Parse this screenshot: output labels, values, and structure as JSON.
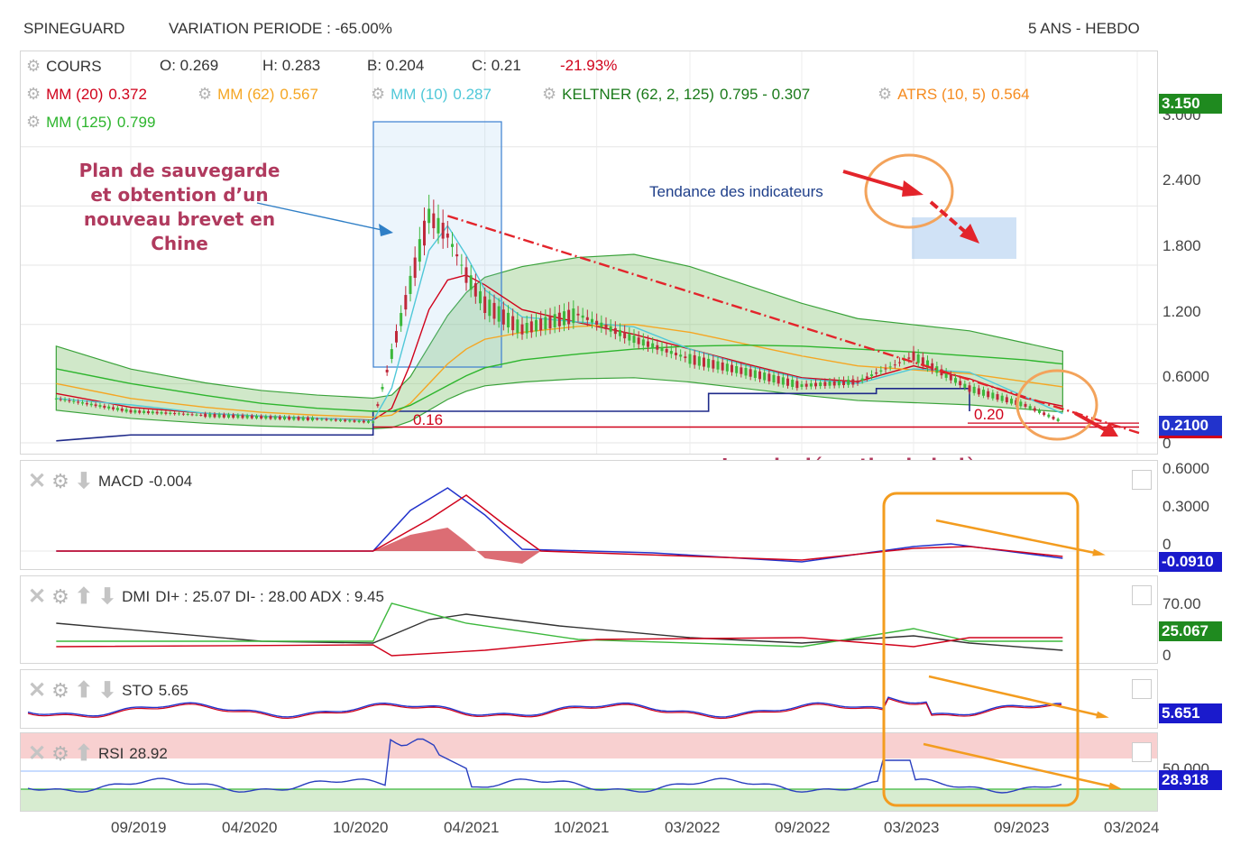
{
  "header": {
    "ticker": "SPINEGUARD",
    "variation": "VARIATION PERIODE : -65.00%",
    "period": "5 ANS - HEBDO"
  },
  "main_panel": {
    "legend_row1": {
      "name": "COURS",
      "open": "O: 0.269",
      "high": "H: 0.283",
      "low": "B: 0.204",
      "close": "C: 0.21",
      "change": "-21.93%"
    },
    "legend_indicators": [
      {
        "label": "MM (20)",
        "value": "0.372",
        "color": "#d0021b"
      },
      {
        "label": "MM (62)",
        "value": "0.567",
        "color": "#f5a623"
      },
      {
        "label": "MM (10)",
        "value": "0.287",
        "color": "#50c8d8"
      },
      {
        "label": "KELTNER (62, 2, 125)",
        "value": "0.795 - 0.307",
        "color": "#1a7a1a"
      },
      {
        "label": "ATRS (10, 5)",
        "value": "0.564",
        "color": "#f58b1f"
      },
      {
        "label": "MM (125)",
        "value": "0.799",
        "color": "#2db52d"
      }
    ],
    "y_axis_ticks": [
      "3.000",
      "2.400",
      "1.800",
      "1.200",
      "0.6000",
      "0"
    ],
    "price_tags": {
      "top": "3.150",
      "last": "0.2100"
    },
    "level_labels": {
      "low_2020": "0.16",
      "low_2023": "0.20"
    }
  },
  "annotations": {
    "brevet_lines": [
      "Plan de sauvegarde",
      "et obtention d’un",
      "nouveau brevet en",
      "Chine"
    ],
    "tendance": "Tendance des indicateurs",
    "deception": "Lourde déception baissière en cours"
  },
  "macd_panel": {
    "label": "MACD",
    "value": "-0.004",
    "y_ticks": [
      "0.6000",
      "0.3000",
      "0"
    ],
    "tag": "-0.0910"
  },
  "dmi_panel": {
    "label": "DMI",
    "values": "DI+ : 25.07 DI- : 28.00 ADX : 9.45",
    "y_ticks": [
      "70.00",
      "0"
    ],
    "tag": "25.067"
  },
  "sto_panel": {
    "label": "STO",
    "value": "5.65",
    "tag": "5.651"
  },
  "rsi_panel": {
    "label": "RSI",
    "value": "28.92",
    "y_ticks": [
      "50.000"
    ],
    "tag": "28.918"
  },
  "x_axis": [
    "09/2019",
    "04/2020",
    "10/2020",
    "04/2021",
    "10/2021",
    "03/2022",
    "09/2022",
    "03/2023",
    "09/2023",
    "03/2024"
  ],
  "chart_data": {
    "type": "line",
    "title": "SPINEGUARD",
    "subtitle": "5 ANS - HEBDO",
    "x": [
      "2019-05",
      "2019-09",
      "2020-01",
      "2020-04",
      "2020-07",
      "2020-10",
      "2020-11",
      "2020-12",
      "2021-01",
      "2021-02",
      "2021-03",
      "2021-04",
      "2021-06",
      "2021-09",
      "2021-12",
      "2022-03",
      "2022-06",
      "2022-09",
      "2022-12",
      "2023-03",
      "2023-06",
      "2023-09",
      "2023-11"
    ],
    "series": [
      {
        "name": "COURS",
        "values": [
          0.45,
          0.32,
          0.28,
          0.26,
          0.24,
          0.21,
          0.9,
          1.6,
          2.3,
          2.1,
          1.7,
          1.4,
          1.15,
          1.3,
          1.05,
          0.85,
          0.72,
          0.58,
          0.62,
          0.88,
          0.55,
          0.38,
          0.21
        ]
      },
      {
        "name": "MM (20)",
        "values": [
          0.5,
          0.36,
          0.3,
          0.27,
          0.25,
          0.23,
          0.35,
          0.8,
          1.35,
          1.65,
          1.7,
          1.6,
          1.35,
          1.22,
          1.1,
          0.95,
          0.8,
          0.66,
          0.62,
          0.78,
          0.65,
          0.45,
          0.372
        ]
      },
      {
        "name": "MM (62)",
        "values": [
          0.6,
          0.45,
          0.36,
          0.31,
          0.28,
          0.26,
          0.28,
          0.4,
          0.6,
          0.8,
          0.95,
          1.05,
          1.12,
          1.18,
          1.2,
          1.12,
          1.0,
          0.88,
          0.78,
          0.74,
          0.7,
          0.62,
          0.567
        ]
      },
      {
        "name": "MM (125)",
        "values": [
          0.75,
          0.6,
          0.48,
          0.4,
          0.35,
          0.32,
          0.32,
          0.38,
          0.48,
          0.58,
          0.68,
          0.76,
          0.84,
          0.9,
          0.95,
          0.98,
          0.99,
          0.98,
          0.95,
          0.92,
          0.88,
          0.84,
          0.799
        ]
      }
    ],
    "ylim": [
      0,
      3.4
    ],
    "grid": true
  }
}
